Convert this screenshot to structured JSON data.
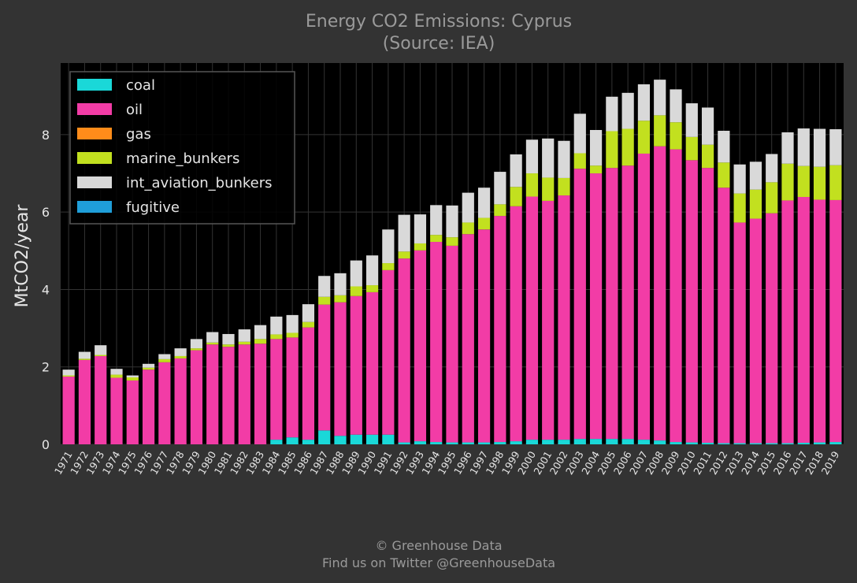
{
  "header": {
    "title_line1": "Energy CO2 Emissions: Cyprus",
    "title_line2": "(Source: IEA)"
  },
  "footer": {
    "line1": "© Greenhouse Data",
    "line2": "Find us on Twitter @GreenhouseData"
  },
  "chart_data": {
    "type": "bar",
    "stacked": true,
    "title": "Energy CO2 Emissions: Cyprus",
    "subtitle": "(Source: IEA)",
    "xlabel": "",
    "ylabel": "MtCO2/year",
    "ylim": [
      0,
      9.85
    ],
    "yticks": [
      0,
      2,
      4,
      6,
      8
    ],
    "grid": true,
    "legend_position": "top-left",
    "categories": [
      "1971",
      "1972",
      "1973",
      "1974",
      "1975",
      "1976",
      "1977",
      "1978",
      "1979",
      "1980",
      "1981",
      "1982",
      "1983",
      "1984",
      "1985",
      "1986",
      "1987",
      "1988",
      "1989",
      "1990",
      "1991",
      "1992",
      "1993",
      "1994",
      "1995",
      "1996",
      "1997",
      "1998",
      "1999",
      "2000",
      "2001",
      "2002",
      "2003",
      "2004",
      "2005",
      "2006",
      "2007",
      "2008",
      "2009",
      "2010",
      "2011",
      "2012",
      "2013",
      "2014",
      "2015",
      "2016",
      "2017",
      "2018",
      "2019"
    ],
    "series": [
      {
        "name": "coal",
        "color": "#1ad8d8",
        "values": [
          0,
          0,
          0,
          0,
          0,
          0,
          0,
          0,
          0,
          0,
          0,
          0,
          0,
          0.12,
          0.18,
          0.12,
          0.36,
          0.22,
          0.25,
          0.25,
          0.25,
          0.05,
          0.08,
          0.06,
          0.05,
          0.05,
          0.05,
          0.06,
          0.08,
          0.12,
          0.12,
          0.12,
          0.14,
          0.14,
          0.14,
          0.14,
          0.12,
          0.1,
          0.06,
          0.05,
          0.04,
          0.03,
          0.03,
          0.03,
          0.03,
          0.03,
          0.04,
          0.05,
          0.06
        ]
      },
      {
        "name": "oil",
        "color": "#f23ca6",
        "values": [
          1.75,
          2.18,
          2.28,
          1.72,
          1.65,
          1.93,
          2.12,
          2.22,
          2.43,
          2.58,
          2.52,
          2.58,
          2.6,
          2.6,
          2.58,
          2.9,
          3.25,
          3.45,
          3.58,
          3.68,
          4.25,
          4.75,
          4.93,
          5.17,
          5.08,
          5.38,
          5.5,
          5.84,
          6.07,
          6.28,
          6.17,
          6.31,
          6.98,
          6.86,
          7.0,
          7.06,
          7.39,
          7.6,
          7.56,
          7.29,
          7.1,
          6.6,
          5.7,
          5.8,
          5.94,
          6.27,
          6.35,
          6.27,
          6.25
        ]
      },
      {
        "name": "gas",
        "color": "#ff8c1a",
        "values": [
          0,
          0,
          0,
          0,
          0,
          0,
          0,
          0,
          0,
          0,
          0,
          0,
          0,
          0,
          0,
          0,
          0,
          0,
          0,
          0,
          0,
          0,
          0,
          0,
          0,
          0,
          0,
          0,
          0,
          0,
          0,
          0,
          0,
          0,
          0,
          0,
          0,
          0,
          0,
          0,
          0,
          0,
          0,
          0,
          0,
          0,
          0,
          0,
          0
        ]
      },
      {
        "name": "marine_bunkers",
        "color": "#c2e01f",
        "values": [
          0.03,
          0.03,
          0.03,
          0.08,
          0.08,
          0.05,
          0.08,
          0.06,
          0.05,
          0.05,
          0.06,
          0.07,
          0.12,
          0.12,
          0.12,
          0.14,
          0.2,
          0.18,
          0.25,
          0.18,
          0.18,
          0.18,
          0.18,
          0.18,
          0.22,
          0.3,
          0.3,
          0.3,
          0.5,
          0.6,
          0.6,
          0.45,
          0.4,
          0.2,
          0.95,
          0.95,
          0.85,
          0.8,
          0.7,
          0.6,
          0.6,
          0.65,
          0.75,
          0.75,
          0.8,
          0.95,
          0.8,
          0.85,
          0.9
        ]
      },
      {
        "name": "int_aviation_bunkers",
        "color": "#d9d9d9",
        "values": [
          0.15,
          0.18,
          0.25,
          0.15,
          0.05,
          0.1,
          0.13,
          0.2,
          0.24,
          0.27,
          0.27,
          0.32,
          0.36,
          0.46,
          0.46,
          0.46,
          0.54,
          0.57,
          0.67,
          0.77,
          0.87,
          0.95,
          0.75,
          0.77,
          0.82,
          0.77,
          0.78,
          0.84,
          0.84,
          0.87,
          1.01,
          0.96,
          1.02,
          0.92,
          0.89,
          0.93,
          0.94,
          0.92,
          0.85,
          0.87,
          0.96,
          0.82,
          0.75,
          0.72,
          0.73,
          0.81,
          0.97,
          0.98,
          0.93
        ]
      },
      {
        "name": "fugitive",
        "color": "#1f9ed9",
        "values": [
          0,
          0,
          0,
          0,
          0,
          0,
          0,
          0,
          0,
          0,
          0,
          0,
          0,
          0,
          0,
          0,
          0,
          0,
          0,
          0,
          0,
          0,
          0,
          0,
          0,
          0,
          0,
          0,
          0,
          0,
          0,
          0,
          0,
          0,
          0,
          0,
          0,
          0,
          0,
          0,
          0,
          0,
          0,
          0,
          0,
          0,
          0,
          0,
          0
        ]
      }
    ]
  }
}
